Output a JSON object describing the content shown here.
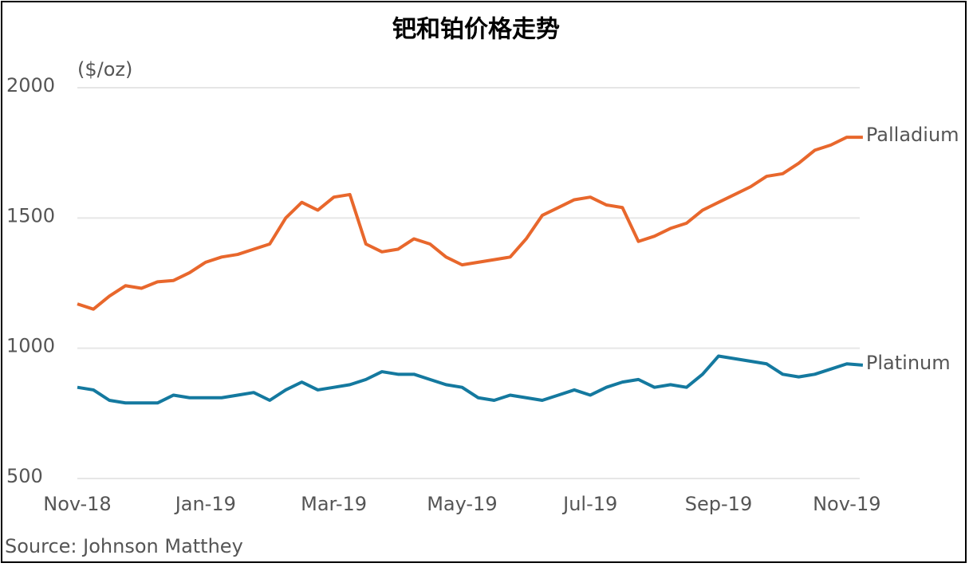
{
  "chart_data": {
    "type": "line",
    "title": "钯和铂价格走势",
    "y_label": "($/oz)",
    "source": "Source: Johnson Matthey",
    "categories": [
      "Nov-18",
      null,
      null,
      null,
      null,
      null,
      null,
      null,
      "Jan-19",
      null,
      null,
      null,
      null,
      null,
      null,
      null,
      "Mar-19",
      null,
      null,
      null,
      null,
      null,
      null,
      null,
      "May-19",
      null,
      null,
      null,
      null,
      null,
      null,
      null,
      "Jul-19",
      null,
      null,
      null,
      null,
      null,
      null,
      null,
      "Sep-19",
      null,
      null,
      null,
      null,
      null,
      null,
      null,
      "Nov-19",
      null
    ],
    "series": [
      {
        "name": "Palladium",
        "color": "#e8672c",
        "values": [
          1170,
          1150,
          1200,
          1240,
          1230,
          1255,
          1260,
          1290,
          1330,
          1350,
          1360,
          1380,
          1400,
          1500,
          1560,
          1530,
          1580,
          1590,
          1400,
          1370,
          1380,
          1420,
          1400,
          1350,
          1320,
          1330,
          1340,
          1350,
          1420,
          1510,
          1540,
          1570,
          1580,
          1550,
          1540,
          1410,
          1430,
          1460,
          1480,
          1530,
          1560,
          1590,
          1620,
          1660,
          1670,
          1710,
          1760,
          1780,
          1810,
          1810
        ]
      },
      {
        "name": "Platinum",
        "color": "#14799f",
        "values": [
          850,
          840,
          800,
          790,
          790,
          790,
          820,
          810,
          810,
          810,
          820,
          830,
          800,
          840,
          870,
          840,
          850,
          860,
          880,
          910,
          900,
          900,
          880,
          860,
          850,
          810,
          800,
          820,
          810,
          800,
          820,
          840,
          820,
          850,
          870,
          880,
          850,
          860,
          850,
          900,
          970,
          960,
          950,
          940,
          900,
          890,
          900,
          920,
          940,
          935
        ]
      }
    ],
    "ylim": [
      500,
      2000
    ],
    "yticks": [
      500,
      1000,
      1500,
      2000
    ],
    "grid": true
  }
}
